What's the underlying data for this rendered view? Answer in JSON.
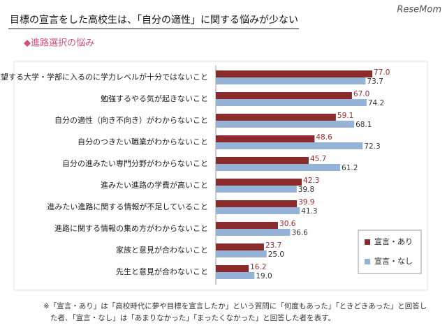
{
  "chart_data": {
    "type": "bar",
    "orientation": "horizontal",
    "title": "目標の宣言をした高校生は、「自分の適性」に関する悩みが少ない",
    "subtitle": "◆進路選択の悩み",
    "watermark": "ReseMom",
    "categories": [
      "志望する大学・学部に入るのに学力レベルが十分ではないこと",
      "勉強するやる気が起きないこと",
      "自分の適性（向き不向き）がわからないこと",
      "自分のつきたい職業がわからないこと",
      "自分の進みたい専門分野がわからないこと",
      "進みたい進路の学費が高いこと",
      "進みたい進路に関する情報が不足していること",
      "進路に関する情報の集め方がわからないこと",
      "家族と意見が合わないこと",
      "先生と意見が合わないこと"
    ],
    "series": [
      {
        "name": "宣言・あり",
        "color": "#8c2b2b",
        "label_color": "#9b2c2c",
        "values": [
          77.0,
          67.0,
          59.1,
          48.6,
          45.7,
          42.3,
          39.9,
          30.6,
          23.7,
          16.2
        ],
        "value_labels": [
          "77.0",
          "67.0",
          "59.1",
          "48.6",
          "45.7",
          "42.3",
          "39.9",
          "30.6",
          "23.7",
          "16.2"
        ]
      },
      {
        "name": "宣言・なし",
        "color": "#95b3d7",
        "label_color": "#333333",
        "values": [
          73.7,
          74.2,
          68.1,
          72.3,
          61.2,
          39.8,
          41.3,
          36.6,
          25.0,
          19.0
        ],
        "value_labels": [
          "73.7",
          "74.2",
          "68.1",
          "72.3",
          "61.2",
          "39.8",
          "41.3",
          "36.6",
          "25.0",
          "19.0"
        ]
      }
    ],
    "legend": "bottom-right",
    "footnote": [
      "※「宣言・あり」は「高校時代に夢や目標を宣言したか」という質問に「何度もあった」「ときどきあった」と回答し",
      "た者、「宣言・なし」は「あまりなかった」「まったくなかった」と回答した者を表す。"
    ]
  }
}
